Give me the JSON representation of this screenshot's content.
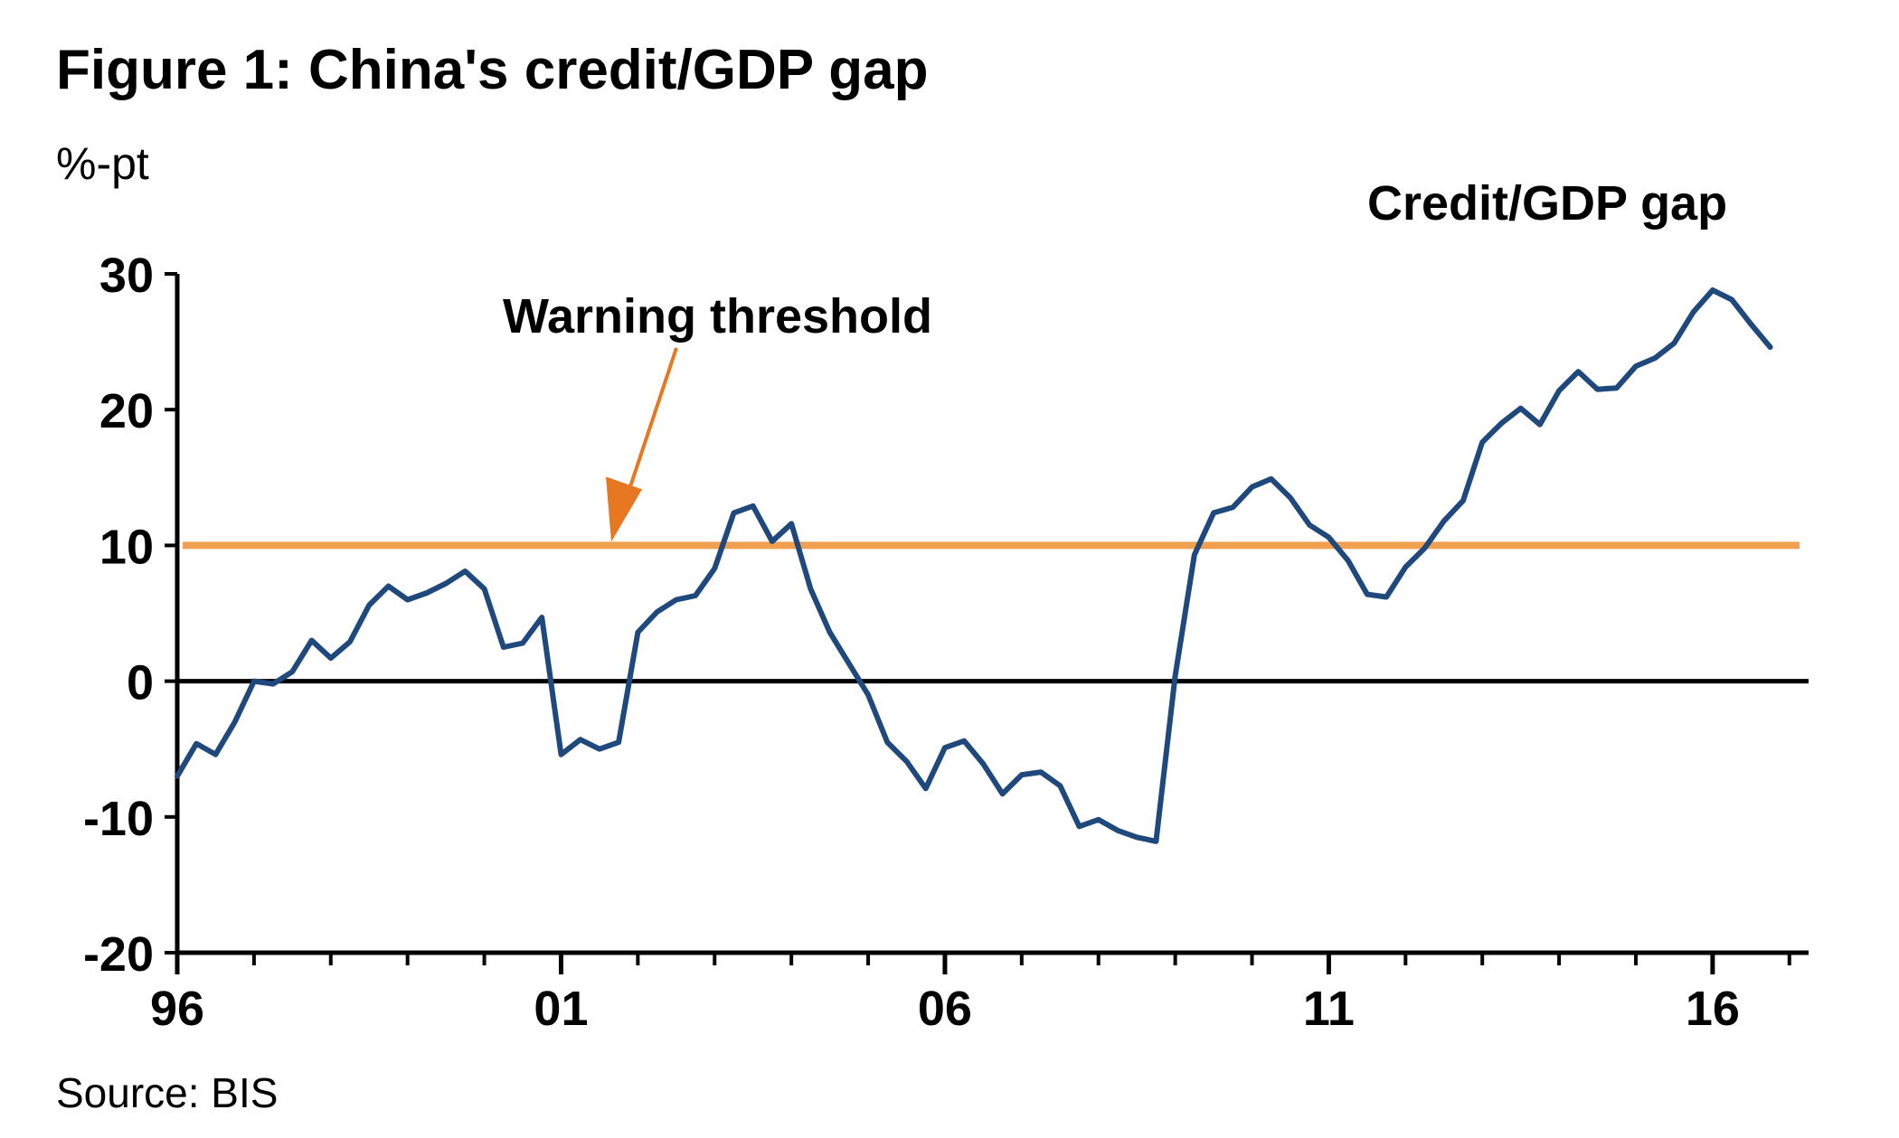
{
  "chart_data": {
    "type": "line",
    "title": "Figure 1: China's credit/GDP gap",
    "ylabel": "%-pt",
    "xlabel": "",
    "source": "Source: BIS",
    "ylim": [
      -20,
      30
    ],
    "yticks": [
      -20,
      -10,
      0,
      10,
      20,
      30
    ],
    "xlim": [
      1996,
      2017.25
    ],
    "x_tick_labels": [
      {
        "x": 1996,
        "label": "96"
      },
      {
        "x": 2001,
        "label": "01"
      },
      {
        "x": 2006,
        "label": "06"
      },
      {
        "x": 2011,
        "label": "11"
      },
      {
        "x": 2016,
        "label": "16"
      }
    ],
    "grid": false,
    "colors": {
      "series": "#1f497d",
      "threshold": "#f0a050",
      "arrow": "#e87722",
      "axis": "#000000"
    },
    "annotations": {
      "threshold_label": "Warning threshold",
      "series_label": "Credit/GDP gap"
    },
    "threshold": {
      "value": 10
    },
    "series": [
      {
        "name": "Credit/GDP gap",
        "start_year": 1996,
        "step": 0.25,
        "values": [
          -7,
          -4.6,
          -5.4,
          -3,
          0,
          -0.2,
          0.7,
          3,
          1.7,
          2.9,
          5.6,
          7,
          6,
          6.5,
          7.2,
          8.1,
          6.8,
          2.5,
          2.8,
          4.7,
          -5.4,
          -4.3,
          -5,
          -4.5,
          3.6,
          5.1,
          6,
          6.3,
          8.3,
          12.4,
          12.9,
          10.3,
          11.6,
          6.8,
          3.6,
          1.3,
          -1,
          -4.5,
          -5.9,
          -7.9,
          -4.9,
          -4.4,
          -6.1,
          -8.3,
          -6.9,
          -6.7,
          -7.7,
          -10.7,
          -10.2,
          -11,
          -11.5,
          -11.8,
          0.4,
          9.3,
          12.4,
          12.8,
          14.3,
          14.9,
          13.5,
          11.5,
          10.6,
          8.9,
          6.4,
          6.2,
          8.4,
          9.8,
          11.8,
          13.3,
          17.6,
          19,
          20.1,
          18.9,
          21.4,
          22.8,
          21.5,
          21.6,
          23.2,
          23.8,
          24.9,
          27.2,
          28.8,
          28.1,
          26.3,
          24.6
        ]
      }
    ]
  }
}
